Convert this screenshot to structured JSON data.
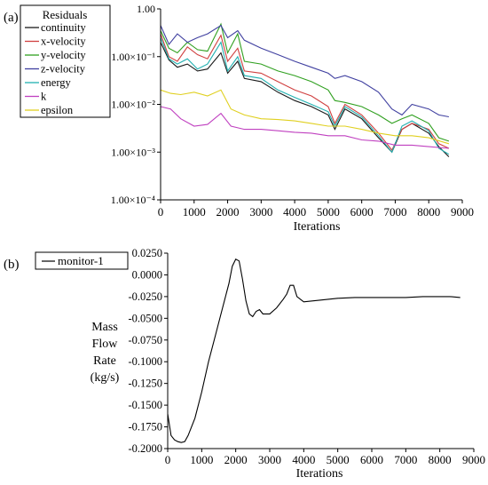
{
  "panel_labels": {
    "a": "(a)",
    "b": "(b)"
  },
  "chart_data": [
    {
      "type": "line",
      "panel": "(a)",
      "title": "",
      "xlabel": "Iterations",
      "ylabel": "",
      "yscale": "log",
      "xlim": [
        0,
        9000
      ],
      "ylim": [
        0.0001,
        1.0
      ],
      "grid": false,
      "legend_title": "Residuals",
      "legend_position": "top-left",
      "xticks": [
        0,
        1000,
        2000,
        3000,
        4000,
        5000,
        6000,
        7000,
        8000,
        9000
      ],
      "xtick_labels": [
        "0",
        "1000",
        "2000",
        "3000",
        "4000",
        "5000",
        "6000",
        "7000",
        "8000",
        "9000"
      ],
      "yticks": [
        1.0,
        0.1,
        0.01,
        0.001,
        0.0001
      ],
      "ytick_labels": [
        "1.00",
        "1.00×10⁻¹",
        "1.00×10⁻²",
        "1.00×10⁻³",
        "1.00×10⁻⁴"
      ],
      "series": [
        {
          "name": "continuity",
          "color": "#1a1a1a",
          "x": [
            0,
            250,
            500,
            800,
            1100,
            1400,
            1800,
            2000,
            2300,
            2500,
            3000,
            3500,
            4000,
            4500,
            5000,
            5200,
            5500,
            6000,
            6500,
            6900,
            7200,
            7500,
            8000,
            8300,
            8600
          ],
          "y": [
            0.2,
            0.085,
            0.06,
            0.07,
            0.05,
            0.055,
            0.12,
            0.045,
            0.08,
            0.035,
            0.03,
            0.018,
            0.012,
            0.009,
            0.006,
            0.003,
            0.008,
            0.005,
            0.002,
            0.001,
            0.003,
            0.004,
            0.0025,
            0.0013,
            0.0008
          ]
        },
        {
          "name": "x-velocity",
          "color": "#d04040",
          "x": [
            0,
            250,
            500,
            800,
            1100,
            1400,
            1800,
            2000,
            2300,
            2500,
            3000,
            3500,
            4000,
            4500,
            5000,
            5200,
            5500,
            6000,
            6500,
            6900,
            7200,
            7500,
            8000,
            8300,
            8600
          ],
          "y": [
            0.3,
            0.1,
            0.08,
            0.16,
            0.11,
            0.09,
            0.28,
            0.08,
            0.15,
            0.05,
            0.045,
            0.03,
            0.02,
            0.015,
            0.009,
            0.004,
            0.01,
            0.006,
            0.0025,
            0.0011,
            0.003,
            0.004,
            0.003,
            0.0015,
            0.0012
          ]
        },
        {
          "name": "y-velocity",
          "color": "#30a020",
          "x": [
            0,
            250,
            500,
            800,
            1100,
            1400,
            1800,
            2000,
            2300,
            2500,
            3000,
            3500,
            4000,
            4500,
            5000,
            5200,
            5500,
            6000,
            6500,
            6900,
            7200,
            7500,
            8000,
            8300,
            8600
          ],
          "y": [
            0.35,
            0.15,
            0.12,
            0.2,
            0.14,
            0.13,
            0.48,
            0.12,
            0.3,
            0.08,
            0.07,
            0.05,
            0.04,
            0.03,
            0.02,
            0.012,
            0.011,
            0.009,
            0.006,
            0.004,
            0.005,
            0.006,
            0.004,
            0.002,
            0.0017
          ]
        },
        {
          "name": "z-velocity",
          "color": "#4040a0",
          "x": [
            0,
            250,
            500,
            800,
            1100,
            1400,
            1800,
            2000,
            2300,
            2500,
            3000,
            3500,
            4000,
            4500,
            5000,
            5200,
            5500,
            6000,
            6500,
            6900,
            7200,
            7500,
            8000,
            8300,
            8600
          ],
          "y": [
            0.45,
            0.18,
            0.3,
            0.2,
            0.25,
            0.3,
            0.45,
            0.25,
            0.35,
            0.22,
            0.15,
            0.11,
            0.08,
            0.06,
            0.045,
            0.035,
            0.04,
            0.03,
            0.018,
            0.008,
            0.006,
            0.01,
            0.008,
            0.006,
            0.0055
          ]
        },
        {
          "name": "energy",
          "color": "#20b0b0",
          "x": [
            0,
            250,
            500,
            800,
            1100,
            1400,
            1800,
            2000,
            2300,
            2500,
            3000,
            3500,
            4000,
            4500,
            5000,
            5200,
            5500,
            6000,
            6500,
            6900,
            7200,
            7500,
            8000,
            8300,
            8600
          ],
          "y": [
            0.25,
            0.09,
            0.07,
            0.09,
            0.055,
            0.07,
            0.2,
            0.05,
            0.1,
            0.04,
            0.035,
            0.02,
            0.014,
            0.01,
            0.007,
            0.0035,
            0.009,
            0.0055,
            0.0022,
            0.001,
            0.0035,
            0.0045,
            0.0028,
            0.0012,
            0.0009
          ]
        },
        {
          "name": "k",
          "color": "#c040c0",
          "x": [
            0,
            300,
            600,
            1000,
            1400,
            1800,
            2100,
            2500,
            3000,
            3500,
            4000,
            4500,
            5000,
            5500,
            6000,
            6500,
            7000,
            7500,
            8000,
            8600
          ],
          "y": [
            0.009,
            0.008,
            0.005,
            0.0035,
            0.0038,
            0.0065,
            0.0035,
            0.003,
            0.003,
            0.0028,
            0.0026,
            0.0025,
            0.0022,
            0.0022,
            0.0018,
            0.0017,
            0.0014,
            0.0014,
            0.0013,
            0.0012
          ]
        },
        {
          "name": "epsilon",
          "color": "#e0d020",
          "x": [
            0,
            300,
            600,
            1000,
            1400,
            1800,
            2100,
            2500,
            3000,
            3500,
            4000,
            4500,
            5000,
            5500,
            6000,
            6500,
            7000,
            7500,
            8000,
            8600
          ],
          "y": [
            0.02,
            0.017,
            0.016,
            0.018,
            0.015,
            0.02,
            0.008,
            0.006,
            0.005,
            0.0048,
            0.0045,
            0.004,
            0.0035,
            0.0035,
            0.003,
            0.0025,
            0.0022,
            0.0022,
            0.002,
            0.0015
          ]
        }
      ]
    },
    {
      "type": "line",
      "panel": "(b)",
      "title": "",
      "xlabel": "Iterations",
      "ylabel": "Mass Flow Rate (kg/s)",
      "ylabel_lines": [
        "Mass",
        "Flow",
        "Rate",
        "(kg/s)"
      ],
      "xlim": [
        0,
        9000
      ],
      "ylim": [
        -0.2,
        0.025
      ],
      "grid": false,
      "legend_position": "top-left",
      "xticks": [
        0,
        1000,
        2000,
        3000,
        4000,
        5000,
        6000,
        7000,
        8000,
        9000
      ],
      "xtick_labels": [
        "0",
        "1000",
        "2000",
        "3000",
        "4000",
        "5000",
        "6000",
        "7000",
        "8000",
        "9000"
      ],
      "yticks": [
        0.025,
        0.0,
        -0.025,
        -0.05,
        -0.075,
        -0.1,
        -0.125,
        -0.15,
        -0.175,
        -0.2
      ],
      "ytick_labels": [
        "0.0250",
        "0.0000",
        "-0.0250",
        "-0.0500",
        "-0.0750",
        "-0.1000",
        "-0.1250",
        "-0.1500",
        "-0.1750",
        "-0.2000"
      ],
      "series": [
        {
          "name": "monitor-1",
          "color": "#000000",
          "x": [
            0,
            100,
            200,
            300,
            400,
            500,
            600,
            800,
            1000,
            1200,
            1400,
            1600,
            1800,
            1900,
            2000,
            2100,
            2200,
            2300,
            2400,
            2500,
            2600,
            2700,
            2800,
            3000,
            3200,
            3400,
            3500,
            3600,
            3700,
            3800,
            4000,
            4500,
            5000,
            5500,
            6000,
            6500,
            7000,
            7500,
            8000,
            8300,
            8600
          ],
          "y": [
            -0.16,
            -0.185,
            -0.19,
            -0.192,
            -0.193,
            -0.192,
            -0.185,
            -0.165,
            -0.135,
            -0.1,
            -0.07,
            -0.04,
            -0.01,
            0.01,
            0.018,
            0.016,
            -0.005,
            -0.03,
            -0.045,
            -0.048,
            -0.042,
            -0.04,
            -0.045,
            -0.045,
            -0.038,
            -0.028,
            -0.022,
            -0.012,
            -0.012,
            -0.025,
            -0.031,
            -0.029,
            -0.027,
            -0.026,
            -0.026,
            -0.026,
            -0.026,
            -0.025,
            -0.025,
            -0.025,
            -0.026
          ]
        }
      ]
    }
  ]
}
